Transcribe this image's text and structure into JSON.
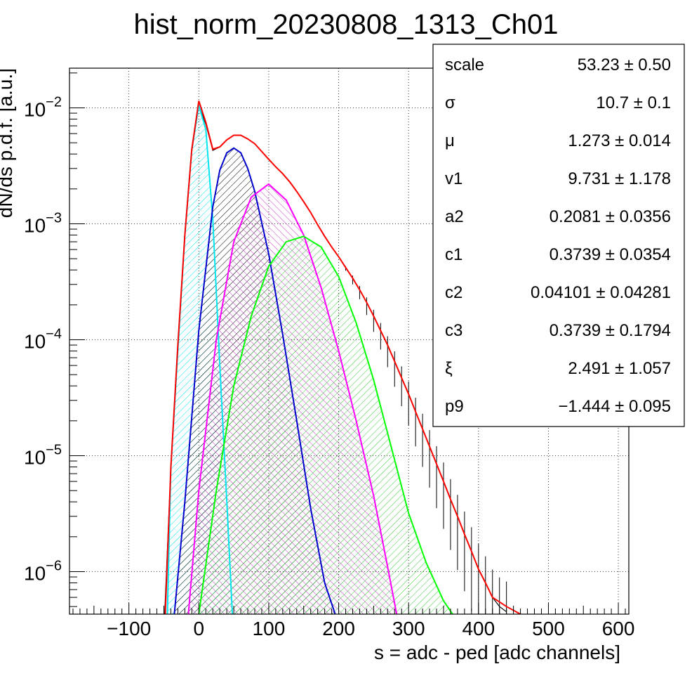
{
  "chart_data": {
    "type": "line",
    "title": "hist_norm_20230808_1313_Ch01",
    "xlabel": "s = adc - ped [adc channels]",
    "ylabel": "dN/ds p.d.f. [a.u.]",
    "x_scale": "linear",
    "y_scale": "log",
    "xlim": [
      -185,
      615
    ],
    "ylim": [
      4.3e-07,
      0.022
    ],
    "grid": true,
    "x_ticks": [
      {
        "value": -100,
        "label": "−100"
      },
      {
        "value": 0,
        "label": "0"
      },
      {
        "value": 100,
        "label": "100"
      },
      {
        "value": 200,
        "label": "200"
      },
      {
        "value": 300,
        "label": "300"
      },
      {
        "value": 400,
        "label": "400"
      },
      {
        "value": 500,
        "label": "500"
      },
      {
        "value": 600,
        "label": "600"
      }
    ],
    "y_ticks": [
      {
        "value": 0.01,
        "base": "10",
        "exp": "−2"
      },
      {
        "value": 0.001,
        "base": "10",
        "exp": "−3"
      },
      {
        "value": 0.0001,
        "base": "10",
        "exp": "−4"
      },
      {
        "value": 1e-05,
        "base": "10",
        "exp": "−5"
      },
      {
        "value": 1e-06,
        "base": "10",
        "exp": "−6"
      }
    ],
    "histogram": {
      "color": "#000000",
      "points": [
        [
          -50,
          3e-07
        ],
        [
          -40,
          8e-06
        ],
        [
          -30,
          9e-05
        ],
        [
          -20,
          0.0008
        ],
        [
          -10,
          0.0042
        ],
        [
          0,
          0.0105
        ],
        [
          10,
          0.0072
        ],
        [
          20,
          0.0043
        ],
        [
          30,
          0.0046
        ],
        [
          40,
          0.0053
        ],
        [
          50,
          0.0058
        ],
        [
          60,
          0.0058
        ],
        [
          70,
          0.0054
        ],
        [
          80,
          0.0049
        ],
        [
          90,
          0.0042
        ],
        [
          100,
          0.0036
        ],
        [
          110,
          0.0031
        ],
        [
          120,
          0.0027
        ],
        [
          130,
          0.0023
        ],
        [
          140,
          0.0019
        ],
        [
          150,
          0.00155
        ],
        [
          160,
          0.00125
        ],
        [
          170,
          0.00098
        ],
        [
          180,
          0.00078
        ],
        [
          190,
          0.00063
        ],
        [
          200,
          0.00052
        ],
        [
          210,
          0.00042
        ],
        [
          220,
          0.00034
        ],
        [
          230,
          0.00027
        ],
        [
          240,
          0.00021
        ],
        [
          250,
          0.00016
        ],
        [
          260,
          0.00012
        ],
        [
          270,
          9e-05
        ],
        [
          280,
          6.5e-05
        ],
        [
          290,
          4.7e-05
        ],
        [
          300,
          3.4e-05
        ],
        [
          310,
          2.4e-05
        ],
        [
          320,
          1.7e-05
        ],
        [
          330,
          1.2e-05
        ],
        [
          340,
          8.5e-06
        ],
        [
          350,
          6e-06
        ],
        [
          360,
          4.2e-06
        ],
        [
          370,
          3e-06
        ],
        [
          380,
          2.1e-06
        ],
        [
          390,
          1.5e-06
        ],
        [
          400,
          1.05e-06
        ],
        [
          410,
          8e-07
        ],
        [
          420,
          6e-07
        ],
        [
          430,
          5e-07
        ],
        [
          440,
          4.5e-07
        ]
      ]
    },
    "series": [
      {
        "color": "#ff0000",
        "fill": null,
        "points": [
          [
            -48,
            4.3e-07
          ],
          [
            -40,
            8e-06
          ],
          [
            -30,
            9e-05
          ],
          [
            -20,
            0.0008
          ],
          [
            -10,
            0.0044
          ],
          [
            0,
            0.0115
          ],
          [
            10,
            0.0075
          ],
          [
            20,
            0.0044
          ],
          [
            30,
            0.0046
          ],
          [
            40,
            0.0053
          ],
          [
            50,
            0.0058
          ],
          [
            60,
            0.0058
          ],
          [
            70,
            0.0054
          ],
          [
            80,
            0.0049
          ],
          [
            90,
            0.0042
          ],
          [
            100,
            0.0036
          ],
          [
            110,
            0.0031
          ],
          [
            120,
            0.0027
          ],
          [
            130,
            0.0023
          ],
          [
            140,
            0.0019
          ],
          [
            150,
            0.00155
          ],
          [
            160,
            0.00125
          ],
          [
            170,
            0.00098
          ],
          [
            180,
            0.00078
          ],
          [
            190,
            0.00063
          ],
          [
            200,
            0.00052
          ],
          [
            210,
            0.00042
          ],
          [
            220,
            0.00034
          ],
          [
            230,
            0.00027
          ],
          [
            240,
            0.00021
          ],
          [
            250,
            0.00016
          ],
          [
            260,
            0.00012
          ],
          [
            270,
            9e-05
          ],
          [
            280,
            6.5e-05
          ],
          [
            290,
            4.7e-05
          ],
          [
            300,
            3.4e-05
          ],
          [
            310,
            2.4e-05
          ],
          [
            320,
            1.7e-05
          ],
          [
            330,
            1.2e-05
          ],
          [
            340,
            8.5e-06
          ],
          [
            350,
            6e-06
          ],
          [
            360,
            4.2e-06
          ],
          [
            370,
            3e-06
          ],
          [
            380,
            2.1e-06
          ],
          [
            390,
            1.5e-06
          ],
          [
            400,
            1.05e-06
          ],
          [
            410,
            8e-07
          ],
          [
            420,
            6e-07
          ],
          [
            440,
            5e-07
          ],
          [
            460,
            4.3e-07
          ]
        ]
      },
      {
        "color": "#00e5ee",
        "fill": "#00e5ee",
        "points": [
          [
            -45,
            4.3e-07
          ],
          [
            -40,
            8e-06
          ],
          [
            -30,
            8e-05
          ],
          [
            -20,
            0.0008
          ],
          [
            -10,
            0.0044
          ],
          [
            0,
            0.0105
          ],
          [
            10,
            0.0065
          ],
          [
            20,
            0.0011
          ],
          [
            30,
            6e-05
          ],
          [
            40,
            4e-06
          ],
          [
            48,
            4.3e-07
          ]
        ]
      },
      {
        "color": "#0000cc",
        "fill": "#000000",
        "points": [
          [
            -35,
            4.3e-07
          ],
          [
            -20,
            4e-06
          ],
          [
            0,
            0.00012
          ],
          [
            20,
            0.0014
          ],
          [
            30,
            0.0029
          ],
          [
            40,
            0.0041
          ],
          [
            50,
            0.0045
          ],
          [
            60,
            0.0041
          ],
          [
            70,
            0.003
          ],
          [
            80,
            0.0019
          ],
          [
            100,
            0.00055
          ],
          [
            120,
            0.00011
          ],
          [
            140,
            2e-05
          ],
          [
            160,
            3.5e-06
          ],
          [
            180,
            8e-07
          ],
          [
            195,
            4.3e-07
          ]
        ]
      },
      {
        "color": "#ff00ff",
        "fill": "#cc33cc",
        "points": [
          [
            -15,
            4.3e-07
          ],
          [
            0,
            5e-06
          ],
          [
            25,
            0.0001
          ],
          [
            50,
            0.0007
          ],
          [
            75,
            0.0017
          ],
          [
            100,
            0.0022
          ],
          [
            125,
            0.0016
          ],
          [
            150,
            0.0008
          ],
          [
            175,
            0.00028
          ],
          [
            200,
            8e-05
          ],
          [
            225,
            2e-05
          ],
          [
            250,
            4.5e-06
          ],
          [
            270,
            1.1e-06
          ],
          [
            283,
            4.3e-07
          ]
        ]
      },
      {
        "color": "#00ff00",
        "fill": "#33cc33",
        "points": [
          [
            0,
            4.3e-07
          ],
          [
            25,
            5e-06
          ],
          [
            50,
            4e-05
          ],
          [
            75,
            0.00016
          ],
          [
            100,
            0.00043
          ],
          [
            125,
            0.0007
          ],
          [
            150,
            0.00078
          ],
          [
            175,
            0.00063
          ],
          [
            200,
            0.00035
          ],
          [
            225,
            0.00014
          ],
          [
            250,
            4.5e-05
          ],
          [
            275,
            1.2e-05
          ],
          [
            300,
            3.2e-06
          ],
          [
            325,
            1.2e-06
          ],
          [
            350,
            5.6e-07
          ],
          [
            363,
            4.3e-07
          ]
        ]
      }
    ]
  },
  "stats_box": {
    "rows": [
      {
        "name": "scale",
        "value": "53.23 ± 0.50"
      },
      {
        "name": "σ",
        "value": "10.7 ± 0.1"
      },
      {
        "name": "μ",
        "value": "1.273 ± 0.014"
      },
      {
        "name": "v1",
        "value": "9.731 ± 1.178"
      },
      {
        "name": "a2",
        "value": "0.2081 ± 0.0356"
      },
      {
        "name": "c1",
        "value": "0.3739 ± 0.0354"
      },
      {
        "name": "c2",
        "value": "0.04101 ± 0.04281"
      },
      {
        "name": "c3",
        "value": "0.3739 ± 0.1794"
      },
      {
        "name": "ξ",
        "value": "2.491 ± 1.057"
      },
      {
        "name": "p9",
        "value": "−1.444 ± 0.095"
      }
    ]
  }
}
